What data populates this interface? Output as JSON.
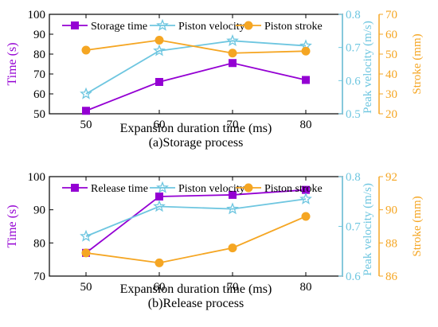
{
  "colors": {
    "time": "#9400d3",
    "velocity": "#6ec6e0",
    "stroke": "#f5a623",
    "axis": "#000000"
  },
  "chart_data": [
    {
      "type": "line",
      "caption": "(a)Storage process",
      "xlabel": "Expansion duration time (ms)",
      "x": [
        50,
        60,
        70,
        80
      ],
      "xlim": [
        45,
        85
      ],
      "xticks": [
        50,
        60,
        70,
        80
      ],
      "left_axis": {
        "label": "Time (s)",
        "ylim": [
          50,
          100
        ],
        "ticks": [
          50,
          60,
          70,
          80,
          90,
          100
        ]
      },
      "right_axis_1": {
        "label": "Peak velocity (m/s)",
        "ylim": [
          0.5,
          0.8
        ],
        "ticks": [
          "0.5",
          "0.6",
          "0.7",
          "0.8"
        ]
      },
      "right_axis_2": {
        "label": "Stroke (mm)",
        "ylim": [
          20,
          70
        ],
        "ticks": [
          20,
          30,
          40,
          50,
          60,
          70
        ]
      },
      "series": [
        {
          "name": "Storage time",
          "axis": "left",
          "marker": "square",
          "color_key": "time",
          "values": [
            51.5,
            66,
            75.5,
            67
          ]
        },
        {
          "name": "Piston velocity",
          "axis": "right1",
          "marker": "star",
          "color_key": "velocity",
          "values": [
            0.56,
            0.69,
            0.72,
            0.705
          ]
        },
        {
          "name": "Piston stroke",
          "axis": "right2",
          "marker": "circle",
          "color_key": "stroke",
          "values": [
            52,
            57,
            50.5,
            51.5
          ]
        }
      ],
      "legend": "top"
    },
    {
      "type": "line",
      "caption": "(b)Release process",
      "xlabel": "Expansion duration time (ms)",
      "x": [
        50,
        60,
        70,
        80
      ],
      "xlim": [
        45,
        85
      ],
      "xticks": [
        50,
        60,
        70,
        80
      ],
      "left_axis": {
        "label": "Time (s)",
        "ylim": [
          70,
          100
        ],
        "ticks": [
          70,
          80,
          90,
          100
        ]
      },
      "right_axis_1": {
        "label": "Peak velocity (m/s)",
        "ylim": [
          0.6,
          0.8
        ],
        "ticks": [
          "0.6",
          "0.7",
          "0.8"
        ]
      },
      "right_axis_2": {
        "label": "Stroke (mm)",
        "ylim": [
          86,
          92
        ],
        "ticks": [
          86,
          88,
          90,
          92
        ]
      },
      "series": [
        {
          "name": "Release time",
          "axis": "left",
          "marker": "square",
          "color_key": "time",
          "values": [
            77,
            94,
            94.5,
            96
          ]
        },
        {
          "name": "Piston velocity",
          "axis": "right1",
          "marker": "star",
          "color_key": "velocity",
          "values": [
            0.68,
            0.74,
            0.735,
            0.755
          ]
        },
        {
          "name": "Piston stroke",
          "axis": "right2",
          "marker": "circle",
          "color_key": "stroke",
          "values": [
            87.4,
            86.8,
            87.7,
            89.6
          ]
        }
      ],
      "legend": "top"
    }
  ]
}
